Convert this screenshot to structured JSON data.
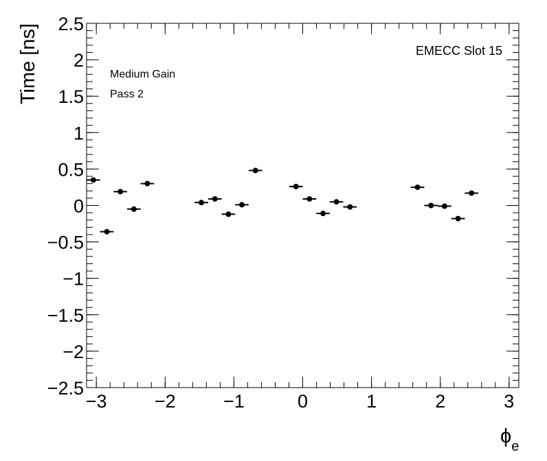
{
  "chart_data": {
    "type": "scatter",
    "title": "",
    "xlabel": "ϕ",
    "xlabel_subscript": "e",
    "ylabel": "Time [ns]",
    "xlim": [
      -3.1416,
      3.1416
    ],
    "ylim": [
      -2.5,
      2.5
    ],
    "x_ticks": [
      -3,
      -2,
      -1,
      0,
      1,
      2,
      3
    ],
    "x_tick_labels": [
      "−3",
      "−2",
      "−1",
      "0",
      "1",
      "2",
      "3"
    ],
    "y_ticks": [
      -2.5,
      -2,
      -1.5,
      -1,
      -0.5,
      0,
      0.5,
      1,
      1.5,
      2,
      2.5
    ],
    "y_tick_labels": [
      "−2.5",
      "−2",
      "−1.5",
      "−1",
      "−0.5",
      "0",
      "0.5",
      "1",
      "1.5",
      "2",
      "2.5"
    ],
    "grid": false,
    "annotations": {
      "top_left_line1": "Medium Gain",
      "top_left_line2": "Pass 2",
      "top_right": "EMECC Slot 15"
    },
    "x_bin_halfwidth": 0.0982,
    "series": [
      {
        "color": "#000000",
        "points": [
          {
            "x": -3.043,
            "y": 0.35
          },
          {
            "x": -2.847,
            "y": -0.36
          },
          {
            "x": -2.651,
            "y": 0.19
          },
          {
            "x": -2.454,
            "y": -0.05
          },
          {
            "x": -2.258,
            "y": 0.3
          },
          {
            "x": -1.473,
            "y": 0.04
          },
          {
            "x": -1.276,
            "y": 0.09
          },
          {
            "x": -1.08,
            "y": -0.12
          },
          {
            "x": -0.884,
            "y": 0.01
          },
          {
            "x": -0.687,
            "y": 0.48
          },
          {
            "x": -0.098,
            "y": 0.26
          },
          {
            "x": 0.098,
            "y": 0.09
          },
          {
            "x": 0.295,
            "y": -0.11
          },
          {
            "x": 0.491,
            "y": 0.05
          },
          {
            "x": 0.687,
            "y": -0.02
          },
          {
            "x": 1.669,
            "y": 0.25
          },
          {
            "x": 1.865,
            "y": 0.0
          },
          {
            "x": 2.062,
            "y": -0.01
          },
          {
            "x": 2.258,
            "y": -0.18
          },
          {
            "x": 2.454,
            "y": 0.17
          }
        ]
      }
    ]
  }
}
